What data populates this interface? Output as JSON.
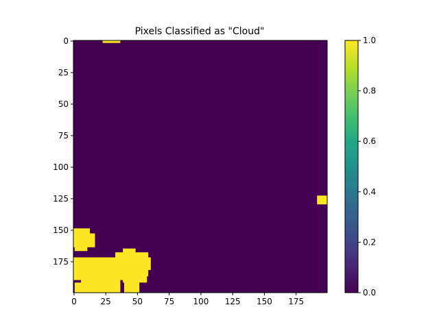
{
  "chart_data": {
    "type": "heatmap",
    "title": "Pixels Classified as \"Cloud\"",
    "xlabel": "",
    "ylabel": "",
    "grid_size": [
      200,
      200
    ],
    "x_ticks": [
      0,
      25,
      50,
      75,
      100,
      125,
      150,
      175
    ],
    "y_ticks": [
      0,
      25,
      50,
      75,
      100,
      125,
      150,
      175
    ],
    "xlim": [
      0,
      199
    ],
    "ylim": [
      199,
      0
    ],
    "colormap": "viridis",
    "colorbar": {
      "range": [
        0,
        1
      ],
      "ticks": [
        "0.0",
        "0.2",
        "0.4",
        "0.6",
        "0.8",
        "1.0"
      ]
    },
    "background_value": 0,
    "cloud_value": 1,
    "cloud_regions": [
      {
        "x": [
          23,
          36
        ],
        "y": [
          0,
          1
        ]
      },
      {
        "x": [
          192,
          199
        ],
        "y": [
          123,
          129
        ]
      },
      {
        "x": [
          0,
          12
        ],
        "y": [
          149,
          153
        ]
      },
      {
        "x": [
          0,
          16
        ],
        "y": [
          153,
          163
        ]
      },
      {
        "x": [
          1,
          10
        ],
        "y": [
          163,
          166
        ]
      },
      {
        "x": [
          0,
          6
        ],
        "y": [
          172,
          189
        ]
      },
      {
        "x": [
          6,
          18
        ],
        "y": [
          172,
          182
        ]
      },
      {
        "x": [
          18,
          36
        ],
        "y": [
          172,
          199
        ]
      },
      {
        "x": [
          6,
          18
        ],
        "y": [
          182,
          199
        ]
      },
      {
        "x": [
          1,
          6
        ],
        "y": [
          192,
          199
        ]
      },
      {
        "x": [
          33,
          39
        ],
        "y": [
          168,
          189
        ]
      },
      {
        "x": [
          39,
          48
        ],
        "y": [
          165,
          189
        ]
      },
      {
        "x": [
          48,
          58
        ],
        "y": [
          168,
          186
        ]
      },
      {
        "x": [
          58,
          60
        ],
        "y": [
          172,
          181
        ]
      },
      {
        "x": [
          39,
          57
        ],
        "y": [
          186,
          191
        ]
      },
      {
        "x": [
          40,
          51
        ],
        "y": [
          191,
          199
        ]
      }
    ],
    "colors": {
      "background": "#440154",
      "cloud": "#fde725"
    }
  }
}
